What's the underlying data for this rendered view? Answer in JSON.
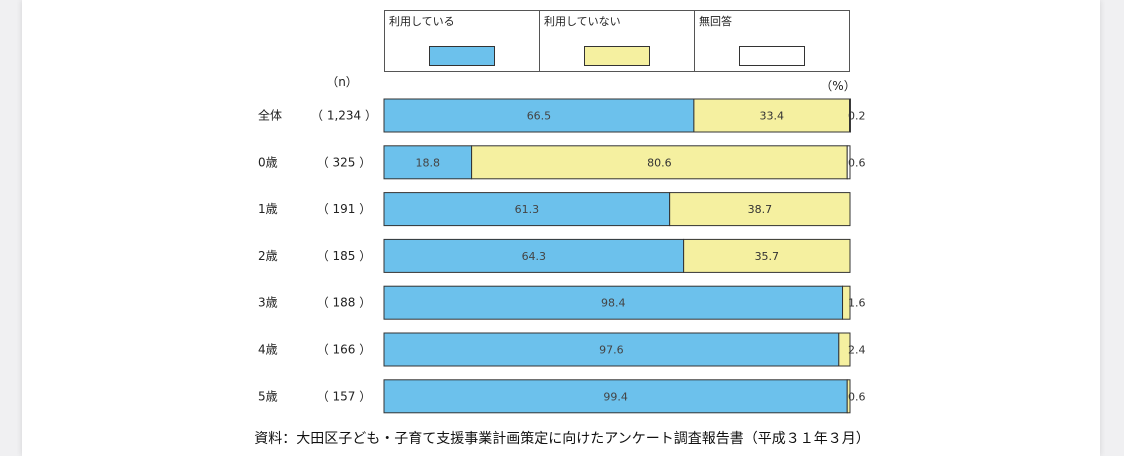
{
  "chart_data": {
    "type": "bar",
    "stacked": true,
    "orientation": "horizontal",
    "n_header": "（n）",
    "unit_label": "（%）",
    "categories": [
      "全体",
      "0歳",
      "1歳",
      "2歳",
      "3歳",
      "4歳",
      "5歳"
    ],
    "n_labels": [
      "（ 1,234 ）",
      "（ 325 ）",
      "（ 191 ）",
      "（ 185 ）",
      "（ 188 ）",
      "（ 166 ）",
      "（ 157 ）"
    ],
    "series": [
      {
        "name": "利用している",
        "color": "#6cc1ec",
        "values": [
          66.5,
          18.8,
          61.3,
          64.3,
          98.4,
          97.6,
          99.4
        ],
        "labels": [
          "66.5",
          "18.8",
          "61.3",
          "64.3",
          "98.4",
          "97.6",
          "99.4"
        ]
      },
      {
        "name": "利用していない",
        "color": "#f5f0a0",
        "values": [
          33.4,
          80.6,
          38.7,
          35.7,
          1.6,
          2.4,
          0.6
        ],
        "labels": [
          "33.4",
          "80.6",
          "38.7",
          "35.7",
          "1.6",
          "2.4",
          "0.6"
        ]
      },
      {
        "name": "無回答",
        "color": "#ffffff",
        "values": [
          0.2,
          0.6,
          0.0,
          0.0,
          0.0,
          0.0,
          0.0
        ],
        "labels": [
          "0.2",
          "0.6",
          "",
          "",
          "",
          "",
          ""
        ]
      }
    ],
    "xlim": [
      0,
      100
    ]
  },
  "caption": "資料：大田区子ども・子育て支援事業計画策定に向けたアンケート調査報告書（平成３１年３月）"
}
